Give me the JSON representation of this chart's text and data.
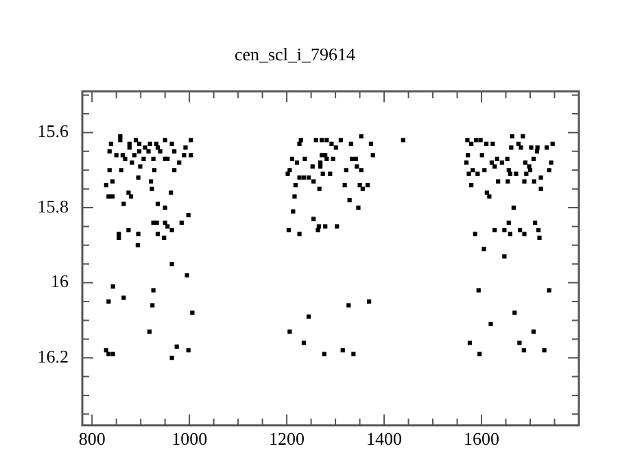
{
  "chart_data": {
    "type": "scatter",
    "title": "cen_scl_i_79614",
    "marker": "square",
    "grid": false,
    "legend": false,
    "xlim": [
      780,
      1800
    ],
    "ylim": [
      16.38,
      15.49
    ],
    "xticks": [
      800,
      {
        "value": 850,
        "label": null
      },
      {
        "value": 900,
        "label": null
      },
      {
        "value": 950,
        "label": null
      },
      1000,
      {
        "value": 1050,
        "label": null
      },
      {
        "value": 1100,
        "label": null
      },
      {
        "value": 1150,
        "label": null
      },
      1200,
      {
        "value": 1250,
        "label": null
      },
      {
        "value": 1300,
        "label": null
      },
      {
        "value": 1350,
        "label": null
      },
      1400,
      {
        "value": 1450,
        "label": null
      },
      {
        "value": 1500,
        "label": null
      },
      {
        "value": 1550,
        "label": null
      },
      1600,
      {
        "value": 1650,
        "label": null
      },
      {
        "value": 1700,
        "label": null
      },
      {
        "value": 1750,
        "label": null
      }
    ],
    "yticks": [
      {
        "value": 15.5,
        "label": null
      },
      {
        "value": 15.55,
        "label": null
      },
      15.6,
      {
        "value": 15.65,
        "label": null
      },
      {
        "value": 15.7,
        "label": null
      },
      {
        "value": 15.75,
        "label": null
      },
      15.8,
      {
        "value": 15.85,
        "label": null
      },
      {
        "value": 15.9,
        "label": null
      },
      {
        "value": 15.95,
        "label": null
      },
      16,
      {
        "value": 16.05,
        "label": null
      },
      {
        "value": 16.1,
        "label": null
      },
      {
        "value": 16.15,
        "label": null
      },
      16.2,
      {
        "value": 16.25,
        "label": null
      },
      {
        "value": 16.3,
        "label": null
      },
      {
        "value": 16.35,
        "label": null
      }
    ],
    "series": [
      {
        "color": "#000000",
        "x": [
          858,
          858,
          877,
          890,
          897,
          919,
          932,
          950,
          964,
          1003,
          839,
          877,
          909,
          935,
          969,
          992,
          836,
          850,
          863,
          887,
          897,
          916,
          940,
          950,
          882,
          868,
          906,
          926,
          955,
          989,
          1003,
          979,
          836,
          860,
          899,
          928,
          969,
          829,
          842,
          895,
          921,
          923,
          834,
          842,
          875,
          880,
          865,
          962,
          935,
          950,
          998,
          984,
          926,
          933,
          950,
          955,
          964,
          875,
          855,
          855,
          895,
          935,
          948,
          894,
          964,
          995,
          843,
          926,
          834,
          865,
          924,
          1006,
          918,
          829,
          834,
          843,
          974,
          998,
          964,
          1226,
          1229,
          1260,
          1272,
          1282,
          1292,
          1301,
          1311,
          1332,
          1353,
          1373,
          1439,
          1211,
          1221,
          1237,
          1272,
          1279,
          1269,
          1282,
          1295,
          1253,
          1269,
          1274,
          1289,
          1334,
          1342,
          1344,
          1353,
          1322,
          1206,
          1202,
          1226,
          1235,
          1245,
          1255,
          1267,
          1319,
          1350,
          1366,
          1356,
          1218,
          1216,
          1329,
          1347,
          1213,
          1255,
          1266,
          1279,
          1303,
          1264,
          1204,
          1226,
          1377,
          1369,
          1327,
          1245,
          1206,
          1235,
          1277,
          1315,
          1337,
          1571,
          1579,
          1589,
          1598,
          1610,
          1623,
          1663,
          1685,
          1676,
          1681,
          1661,
          1702,
          1715,
          1714,
          1734,
          1746,
          1572,
          1569,
          1601,
          1621,
          1632,
          1627,
          1642,
          1653,
          1690,
          1707,
          1698,
          1743,
          1739,
          1574,
          1582,
          1592,
          1606,
          1634,
          1656,
          1659,
          1671,
          1692,
          1700,
          1688,
          1708,
          1722,
          1654,
          1579,
          1611,
          1616,
          1722,
          1666,
          1656,
          1710,
          1627,
          1647,
          1659,
          1679,
          1688,
          1717,
          1719,
          1587,
          1605,
          1647,
          1594,
          1739,
          1668,
          1619,
          1707,
          1576,
          1596,
          1678,
          1687,
          1729
        ],
        "values": [
          15.61,
          15.62,
          15.63,
          15.62,
          15.63,
          15.63,
          15.63,
          15.62,
          15.63,
          15.62,
          15.63,
          15.64,
          15.64,
          15.64,
          15.65,
          15.64,
          15.65,
          15.66,
          15.66,
          15.66,
          15.65,
          15.65,
          15.65,
          15.67,
          15.68,
          15.67,
          15.67,
          15.67,
          15.67,
          15.66,
          15.66,
          15.68,
          15.7,
          15.7,
          15.69,
          15.7,
          15.7,
          15.74,
          15.73,
          15.72,
          15.73,
          15.75,
          15.77,
          15.77,
          15.76,
          15.77,
          15.79,
          15.76,
          15.79,
          15.8,
          15.82,
          15.84,
          15.84,
          15.84,
          15.84,
          15.85,
          15.86,
          15.86,
          15.87,
          15.88,
          15.87,
          15.87,
          15.88,
          15.9,
          15.95,
          15.98,
          16.01,
          16.02,
          16.05,
          16.04,
          16.06,
          16.08,
          16.13,
          16.18,
          16.19,
          16.19,
          16.17,
          16.18,
          16.2,
          15.63,
          15.62,
          15.62,
          15.62,
          15.62,
          15.63,
          15.64,
          15.62,
          15.63,
          15.61,
          15.63,
          15.62,
          15.67,
          15.68,
          15.67,
          15.66,
          15.66,
          15.68,
          15.67,
          15.67,
          15.69,
          15.69,
          15.71,
          15.71,
          15.67,
          15.67,
          15.69,
          15.7,
          15.7,
          15.7,
          15.71,
          15.72,
          15.72,
          15.72,
          15.73,
          15.75,
          15.74,
          15.74,
          15.74,
          15.75,
          15.74,
          15.77,
          15.78,
          15.8,
          15.81,
          15.83,
          15.85,
          15.85,
          15.85,
          15.86,
          15.86,
          15.87,
          15.66,
          16.05,
          16.06,
          16.09,
          16.13,
          16.16,
          16.19,
          16.18,
          16.19,
          15.62,
          15.63,
          15.62,
          15.62,
          15.63,
          15.63,
          15.61,
          15.61,
          15.63,
          15.64,
          15.64,
          15.64,
          15.64,
          15.65,
          15.64,
          15.63,
          15.66,
          15.68,
          15.66,
          15.68,
          15.67,
          15.69,
          15.68,
          15.67,
          15.68,
          15.67,
          15.69,
          15.68,
          15.7,
          15.71,
          15.7,
          15.71,
          15.7,
          15.73,
          15.7,
          15.71,
          15.71,
          15.71,
          15.7,
          15.73,
          15.73,
          15.72,
          15.73,
          15.74,
          15.76,
          15.77,
          15.75,
          15.8,
          15.84,
          15.84,
          15.86,
          15.86,
          15.87,
          15.86,
          15.87,
          15.86,
          15.88,
          15.87,
          15.91,
          15.93,
          16.02,
          16.02,
          16.08,
          16.11,
          16.13,
          16.16,
          16.19,
          16.16,
          16.18,
          16.18
        ]
      }
    ]
  }
}
